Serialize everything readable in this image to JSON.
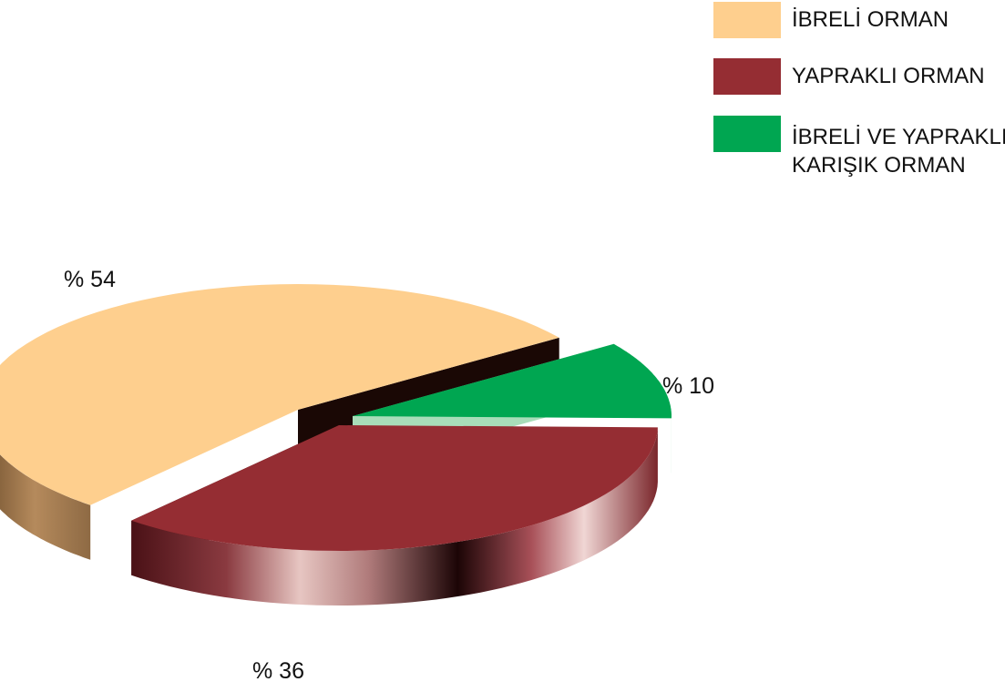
{
  "chart_data": {
    "type": "pie",
    "three_d": true,
    "legend_position": "top-right",
    "categories": [
      "İBRELİ ORMAN",
      "YAPRAKLI ORMAN",
      "İBRELİ VE YAPRAKLI\nKARIŞIK ORMAN"
    ],
    "values": [
      54,
      36,
      10
    ],
    "labels": [
      "% 54",
      "% 36",
      "% 10"
    ],
    "colors": {
      "top": [
        "#FECF8E",
        "#952D33",
        "#00A651"
      ],
      "side": [
        "#A88057",
        "#6B1E22",
        "#A8DDB9"
      ],
      "dark": [
        "#1A0805",
        "#3A0D10",
        "#6EAE86"
      ]
    }
  }
}
